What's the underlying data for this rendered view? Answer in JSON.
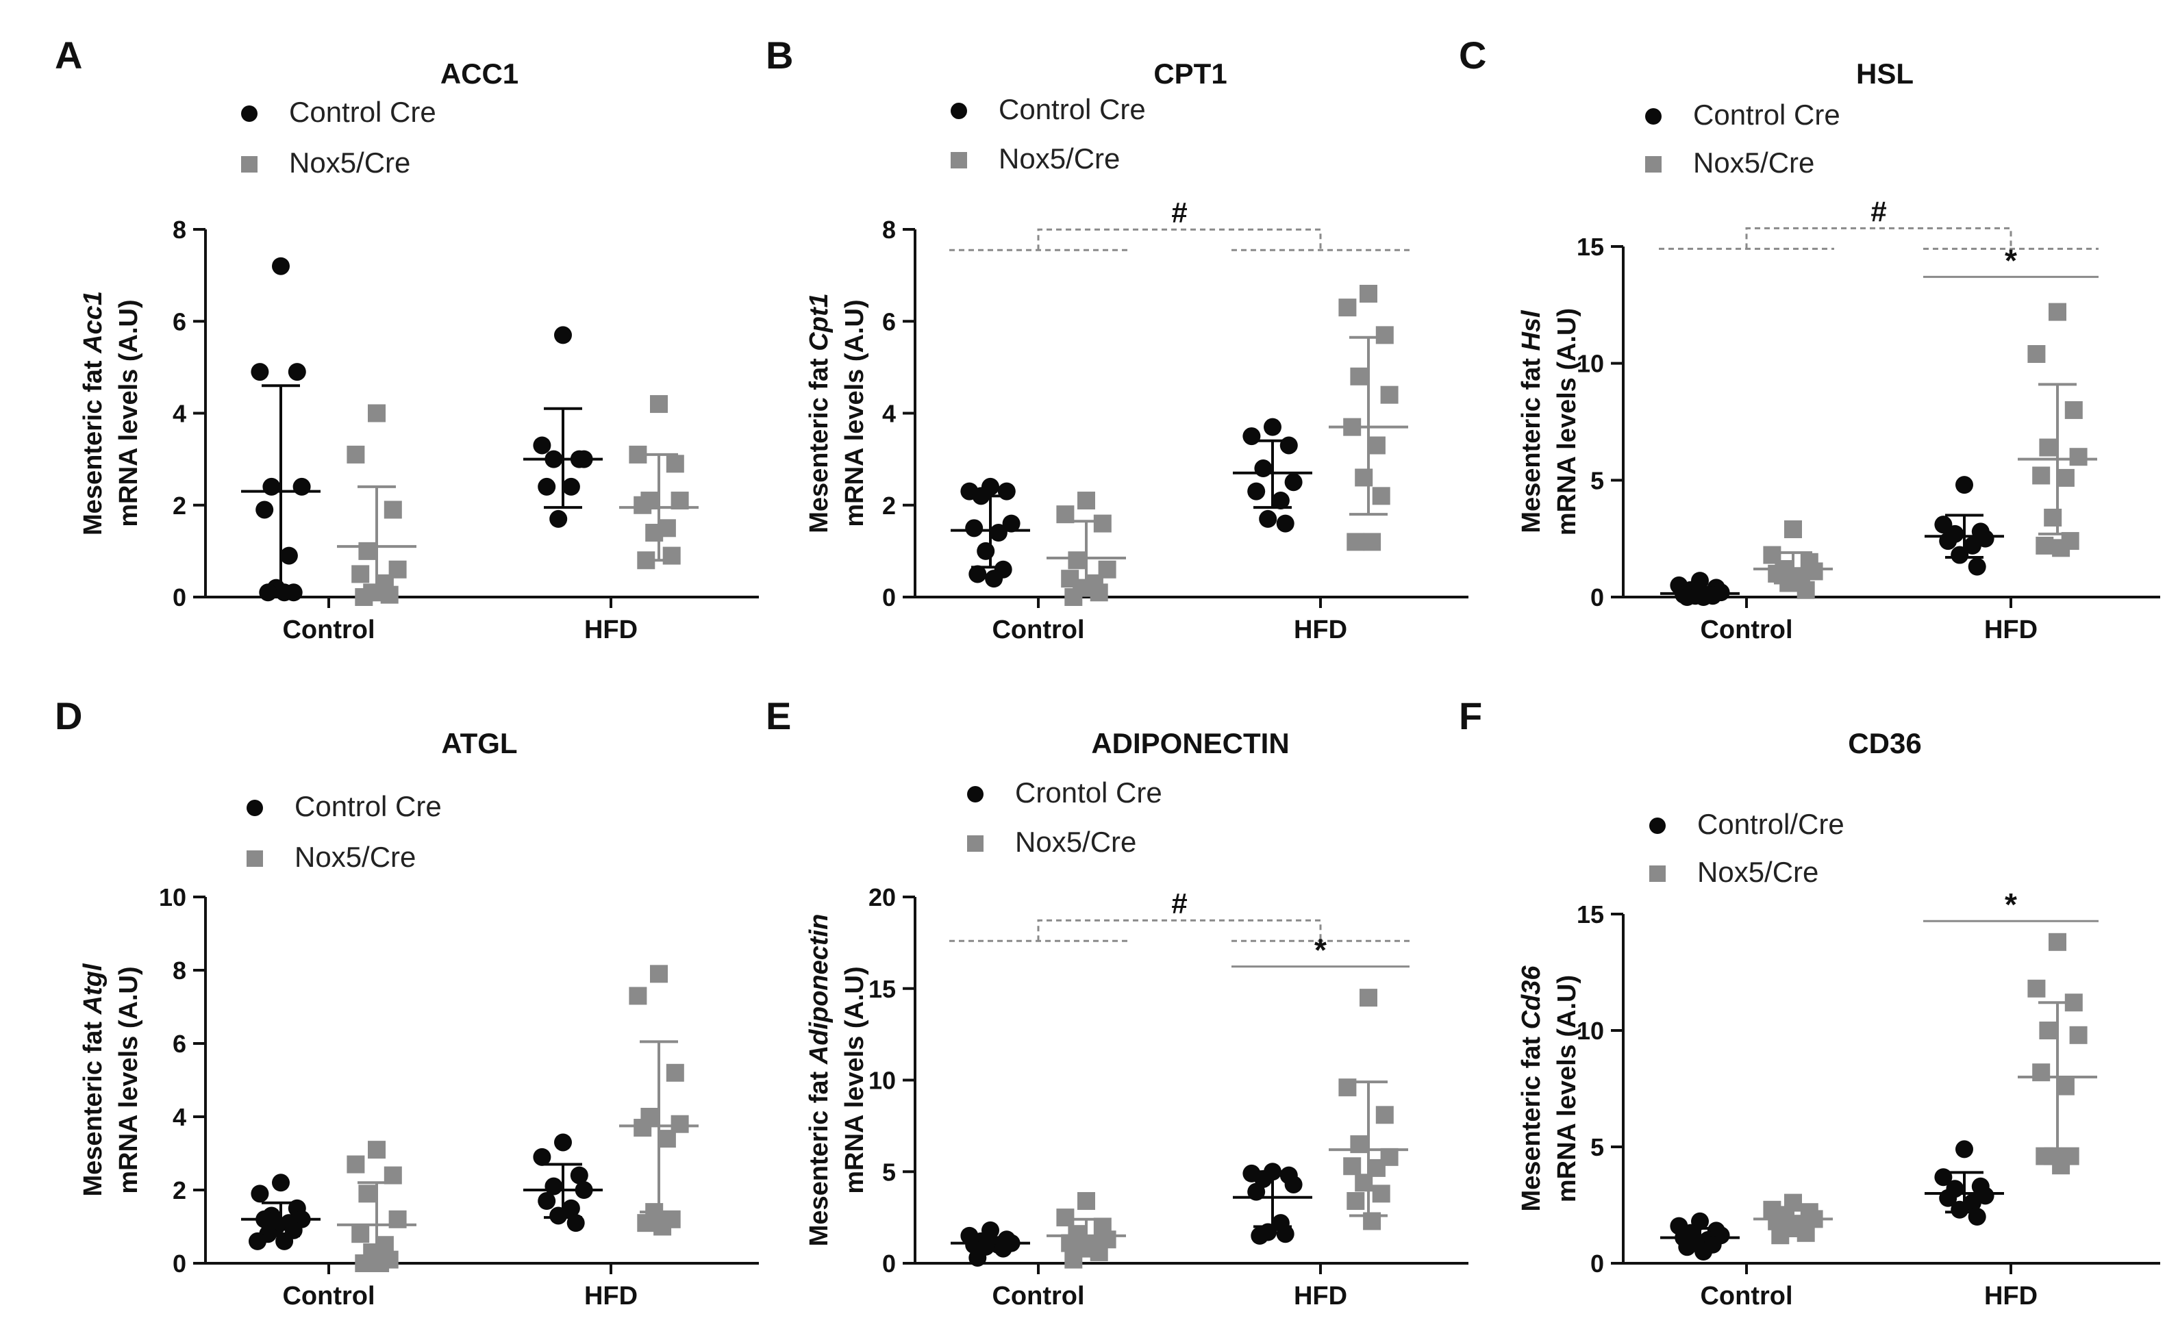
{
  "figure": {
    "description_free": true
  },
  "colors": {
    "control": "#0a0a0a",
    "nox5": "#8a8a8a",
    "axis": "#111111",
    "bracket": "#8a8a8a"
  },
  "chart_data": [
    {
      "type": "scatter",
      "panel": "A",
      "title": "ACC1",
      "ylabel_prefix": "Mesenteric fat ",
      "ylabel_gene": "Acc1",
      "ylabel_line2": "mRNA levels (A.U)",
      "ylim": [
        0,
        8
      ],
      "yticks": [
        0,
        2,
        4,
        6,
        8
      ],
      "categories": [
        "Control",
        "HFD"
      ],
      "legend": [
        "Control Cre",
        "Nox5/Cre"
      ],
      "series": [
        {
          "name": "Control Cre",
          "marker": "circle",
          "groups": [
            {
              "points": [
                7.2,
                4.9,
                4.9,
                2.4,
                2.4,
                1.9,
                0.9,
                0.2,
                0.1,
                0.1,
                0.1
              ],
              "mean": 2.3,
              "sd_upper": 4.6,
              "sd_lower": 0.0
            },
            {
              "points": [
                5.7,
                3.3,
                3.0,
                3.0,
                3.0,
                2.4,
                2.4,
                1.7
              ],
              "mean": 3.0,
              "sd_upper": 4.1,
              "sd_lower": 1.95
            }
          ]
        },
        {
          "name": "Nox5/Cre",
          "marker": "square",
          "groups": [
            {
              "points": [
                4.0,
                3.1,
                1.9,
                1.0,
                0.6,
                0.5,
                0.3,
                0.1,
                0.05,
                0.0
              ],
              "mean": 1.1,
              "sd_upper": 2.4,
              "sd_lower": 0.0
            },
            {
              "points": [
                4.2,
                3.1,
                2.9,
                2.1,
                2.1,
                2.0,
                1.5,
                1.4,
                0.9,
                0.8
              ],
              "mean": 1.95,
              "sd_upper": 3.1,
              "sd_lower": 0.8
            }
          ]
        }
      ],
      "significance": []
    },
    {
      "type": "scatter",
      "panel": "B",
      "title": "CPT1",
      "ylabel_prefix": "Mesenteric fat ",
      "ylabel_gene": "Cpt1",
      "ylabel_line2": "mRNA levels (A.U)",
      "ylim": [
        0,
        8
      ],
      "yticks": [
        0,
        2,
        4,
        6,
        8
      ],
      "categories": [
        "Control",
        "HFD"
      ],
      "legend": [
        "Control Cre",
        "Nox5/Cre"
      ],
      "series": [
        {
          "name": "Control Cre",
          "marker": "circle",
          "groups": [
            {
              "points": [
                2.4,
                2.3,
                2.3,
                2.2,
                1.6,
                1.5,
                1.4,
                1.0,
                0.6,
                0.5,
                0.4
              ],
              "mean": 1.45,
              "sd_upper": 2.2,
              "sd_lower": 0.65
            },
            {
              "points": [
                3.7,
                3.5,
                3.3,
                2.8,
                2.5,
                2.3,
                2.1,
                1.7,
                1.6
              ],
              "mean": 2.7,
              "sd_upper": 3.4,
              "sd_lower": 1.95
            }
          ]
        },
        {
          "name": "Nox5/Cre",
          "marker": "square",
          "groups": [
            {
              "points": [
                2.1,
                1.8,
                1.6,
                0.8,
                0.6,
                0.4,
                0.3,
                0.2,
                0.1,
                0.0
              ],
              "mean": 0.85,
              "sd_upper": 1.65,
              "sd_lower": 0.05
            },
            {
              "points": [
                6.6,
                6.3,
                5.7,
                4.8,
                4.4,
                3.7,
                3.3,
                2.6,
                2.2,
                1.2,
                1.2
              ],
              "mean": 3.7,
              "sd_upper": 5.65,
              "sd_lower": 1.8
            }
          ]
        }
      ],
      "significance": [
        {
          "label": "#",
          "type": "hash",
          "level": 7.55
        }
      ]
    },
    {
      "type": "scatter",
      "panel": "C",
      "title": "HSL",
      "ylabel_prefix": "Mesenteric fat ",
      "ylabel_gene": "Hsl",
      "ylabel_line2": "mRNA levels (A.U)",
      "ylim": [
        0,
        15
      ],
      "yticks": [
        0,
        5,
        10,
        15
      ],
      "categories": [
        "Control",
        "HFD"
      ],
      "legend": [
        "Control Cre",
        "Nox5/Cre"
      ],
      "series": [
        {
          "name": "Control Cre",
          "marker": "circle",
          "groups": [
            {
              "points": [
                0.7,
                0.5,
                0.4,
                0.3,
                0.2,
                0.1,
                0.1,
                0.05,
                0.05,
                0.0,
                0.0
              ],
              "mean": 0.15,
              "sd_upper": 0.4,
              "sd_lower": 0.0
            },
            {
              "points": [
                4.8,
                3.1,
                2.8,
                2.7,
                2.5,
                2.4,
                2.2,
                1.8,
                1.3
              ],
              "mean": 2.6,
              "sd_upper": 3.5,
              "sd_lower": 1.7
            }
          ]
        },
        {
          "name": "Nox5/Cre",
          "marker": "square",
          "groups": [
            {
              "points": [
                2.9,
                1.8,
                1.5,
                1.2,
                1.1,
                1.0,
                0.9,
                0.6,
                0.3
              ],
              "mean": 1.2,
              "sd_upper": 1.9,
              "sd_lower": 0.6
            },
            {
              "points": [
                12.2,
                10.4,
                8.0,
                6.4,
                6.0,
                5.2,
                5.1,
                3.4,
                2.4,
                2.2,
                2.1
              ],
              "mean": 5.9,
              "sd_upper": 9.1,
              "sd_lower": 2.7
            }
          ]
        }
      ],
      "significance": [
        {
          "label": "#",
          "type": "hash",
          "level": 14.9
        },
        {
          "label": "*",
          "type": "star",
          "level": 13.7
        }
      ]
    },
    {
      "type": "scatter",
      "panel": "D",
      "title": "ATGL",
      "ylabel_prefix": "Mesenteric fat ",
      "ylabel_gene": "Atgl",
      "ylabel_line2": "mRNA levels (A.U)",
      "ylim": [
        0,
        10
      ],
      "yticks": [
        0,
        2,
        4,
        6,
        8,
        10
      ],
      "categories": [
        "Control",
        "HFD"
      ],
      "legend": [
        "Control Cre",
        "Nox5/Cre"
      ],
      "series": [
        {
          "name": "Control Cre",
          "marker": "circle",
          "groups": [
            {
              "points": [
                2.2,
                1.9,
                1.5,
                1.3,
                1.2,
                1.2,
                1.1,
                1.0,
                0.9,
                0.8,
                0.6,
                0.6
              ],
              "mean": 1.2,
              "sd_upper": 1.65,
              "sd_lower": 0.75
            },
            {
              "points": [
                3.3,
                2.9,
                2.4,
                2.1,
                2.0,
                1.7,
                1.5,
                1.3,
                1.1
              ],
              "mean": 2.0,
              "sd_upper": 2.7,
              "sd_lower": 1.25
            }
          ]
        },
        {
          "name": "Nox5/Cre",
          "marker": "square",
          "groups": [
            {
              "points": [
                3.1,
                2.7,
                2.4,
                1.9,
                1.2,
                0.8,
                0.5,
                0.3,
                0.1,
                0.0,
                0.0
              ],
              "mean": 1.05,
              "sd_upper": 2.2,
              "sd_lower": 0.0
            },
            {
              "points": [
                7.9,
                7.3,
                5.2,
                4.0,
                3.8,
                3.7,
                3.4,
                1.4,
                1.2,
                1.1,
                1.0
              ],
              "mean": 3.75,
              "sd_upper": 6.05,
              "sd_lower": 1.4
            }
          ]
        }
      ],
      "significance": []
    },
    {
      "type": "scatter",
      "panel": "E",
      "title": "ADIPONECTIN",
      "ylabel_prefix": "Mesenteric fat ",
      "ylabel_gene": "Adiponectin",
      "ylabel_line2": "mRNA levels (A.U)",
      "ylim": [
        0,
        20
      ],
      "yticks": [
        0,
        5,
        10,
        15,
        20
      ],
      "categories": [
        "Control",
        "HFD"
      ],
      "legend": [
        "Crontol Cre",
        "Nox5/Cre"
      ],
      "series": [
        {
          "name": "Crontol Cre",
          "marker": "circle",
          "groups": [
            {
              "points": [
                1.8,
                1.5,
                1.3,
                1.2,
                1.1,
                1.0,
                1.0,
                0.9,
                0.8,
                0.3
              ],
              "mean": 1.1,
              "sd_upper": 1.4,
              "sd_lower": 0.8
            },
            {
              "points": [
                5.0,
                4.9,
                4.8,
                4.6,
                4.3,
                3.9,
                2.2,
                1.7,
                1.6,
                1.5
              ],
              "mean": 3.6,
              "sd_upper": 5.0,
              "sd_lower": 2.0
            }
          ]
        },
        {
          "name": "Nox5/Cre",
          "marker": "square",
          "groups": [
            {
              "points": [
                3.4,
                2.5,
                2.0,
                1.6,
                1.3,
                1.1,
                1.0,
                0.8,
                0.6,
                0.2
              ],
              "mean": 1.5,
              "sd_upper": 2.4,
              "sd_lower": 0.6
            },
            {
              "points": [
                14.5,
                9.6,
                8.1,
                6.5,
                5.8,
                5.3,
                5.2,
                4.4,
                3.8,
                3.4,
                2.3
              ],
              "mean": 6.2,
              "sd_upper": 9.9,
              "sd_lower": 2.6
            }
          ]
        }
      ],
      "significance": [
        {
          "label": "#",
          "type": "hash",
          "level": 17.6
        },
        {
          "label": "*",
          "type": "star",
          "level": 16.2
        }
      ]
    },
    {
      "type": "scatter",
      "panel": "F",
      "title": "CD36",
      "ylabel_prefix": "Mesenteric fat ",
      "ylabel_gene": "Cd36",
      "ylabel_line2": "mRNA levels (A.U)",
      "ylim": [
        0,
        15
      ],
      "yticks": [
        0,
        5,
        10,
        15
      ],
      "categories": [
        "Control",
        "HFD"
      ],
      "legend": [
        "Control/Cre",
        "Nox5/Cre"
      ],
      "series": [
        {
          "name": "Control/Cre",
          "marker": "circle",
          "groups": [
            {
              "points": [
                1.8,
                1.6,
                1.4,
                1.3,
                1.2,
                1.1,
                1.0,
                0.9,
                0.8,
                0.7,
                0.5
              ],
              "mean": 1.1,
              "sd_upper": 1.5,
              "sd_lower": 0.7
            },
            {
              "points": [
                4.9,
                3.7,
                3.3,
                3.2,
                2.9,
                2.8,
                2.6,
                2.3,
                2.0
              ],
              "mean": 3.0,
              "sd_upper": 3.9,
              "sd_lower": 2.2
            }
          ]
        },
        {
          "name": "Nox5/Cre",
          "marker": "square",
          "groups": [
            {
              "points": [
                2.6,
                2.3,
                2.2,
                2.0,
                1.9,
                1.8,
                1.7,
                1.5,
                1.3,
                1.2
              ],
              "mean": 1.9,
              "sd_upper": 2.4,
              "sd_lower": 1.4
            },
            {
              "points": [
                13.8,
                11.8,
                11.2,
                10.0,
                9.8,
                8.2,
                7.6,
                4.6,
                4.6,
                4.6,
                4.2
              ],
              "mean": 8.0,
              "sd_upper": 11.2,
              "sd_lower": 4.8
            }
          ]
        }
      ],
      "significance": [
        {
          "label": "*",
          "type": "star",
          "level": 14.7
        }
      ]
    }
  ]
}
